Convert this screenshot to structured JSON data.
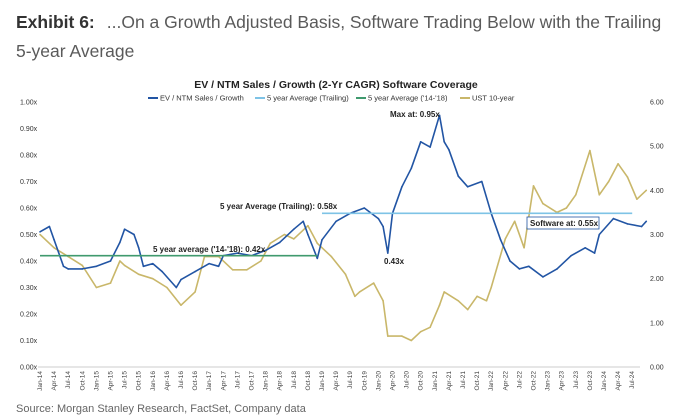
{
  "header": {
    "exhibit": "Exhibit 6:",
    "title": "...On a Growth Adjusted Basis, Software Trading Below with the Trailing 5-year Average"
  },
  "source": "Source: Morgan Stanley Research, FactSet, Company data",
  "chart_data": {
    "type": "line",
    "title": "EV / NTM Sales / Growth (2-Yr CAGR) Software Coverage",
    "legend": [
      "EV / NTM Sales / Growth",
      "5 year Average (Trailing)",
      "5 year Average ('14-'18)",
      "UST 10-year"
    ],
    "legend_placement": "top",
    "colors": {
      "ev": "#2255a4",
      "trailing": "#7ec3e6",
      "avg1418": "#3f9a6e",
      "ust": "#c9b76a"
    },
    "y_left": {
      "ticks": [
        "0.00x",
        "0.10x",
        "0.20x",
        "0.30x",
        "0.40x",
        "0.50x",
        "0.60x",
        "0.70x",
        "0.80x",
        "0.90x",
        "1.00x"
      ],
      "ylim": [
        0,
        1
      ]
    },
    "y_right": {
      "ticks": [
        "0.00",
        "1.00",
        "2.00",
        "3.00",
        "4.00",
        "5.00",
        "6.00"
      ],
      "ylim": [
        0,
        6
      ]
    },
    "x_ticks": [
      "Jan-14",
      "Apr-14",
      "Jul-14",
      "Oct-14",
      "Jan-15",
      "Apr-15",
      "Jul-15",
      "Oct-15",
      "Jan-16",
      "Apr-16",
      "Jul-16",
      "Oct-16",
      "Jan-17",
      "Apr-17",
      "Jul-17",
      "Oct-17",
      "Jan-18",
      "Apr-18",
      "Jul-18",
      "Oct-18",
      "Jan-19",
      "Apr-19",
      "Jul-19",
      "Oct-19",
      "Jan-20",
      "Apr-20",
      "Jul-20",
      "Oct-20",
      "Jan-21",
      "Apr-21",
      "Jul-21",
      "Oct-21",
      "Jan-22",
      "Apr-22",
      "Jul-22",
      "Oct-22",
      "Jan-23",
      "Apr-23",
      "Jul-23",
      "Oct-23",
      "Jan-24",
      "Apr-24",
      "Jul-24"
    ],
    "ev_series": {
      "month_index": [
        0,
        2,
        3,
        5,
        6,
        9,
        12,
        15,
        17,
        18,
        20,
        21,
        22,
        24,
        26,
        29,
        30,
        33,
        36,
        38,
        39,
        42,
        45,
        48,
        51,
        54,
        56,
        57,
        59,
        60,
        63,
        66,
        69,
        72,
        73,
        74,
        75,
        77,
        79,
        81,
        83,
        85,
        86,
        87,
        89,
        91,
        94,
        96,
        98,
        100,
        102,
        104,
        107,
        110,
        113,
        116,
        118,
        119,
        122,
        125,
        128,
        129
      ],
      "values": [
        0.51,
        0.53,
        0.48,
        0.38,
        0.37,
        0.37,
        0.38,
        0.4,
        0.47,
        0.52,
        0.5,
        0.45,
        0.38,
        0.39,
        0.36,
        0.3,
        0.33,
        0.36,
        0.39,
        0.38,
        0.42,
        0.43,
        0.42,
        0.44,
        0.47,
        0.52,
        0.55,
        0.5,
        0.41,
        0.48,
        0.55,
        0.58,
        0.6,
        0.56,
        0.53,
        0.43,
        0.58,
        0.68,
        0.75,
        0.85,
        0.83,
        0.95,
        0.85,
        0.82,
        0.72,
        0.68,
        0.7,
        0.58,
        0.48,
        0.4,
        0.37,
        0.38,
        0.34,
        0.37,
        0.42,
        0.45,
        0.43,
        0.5,
        0.56,
        0.54,
        0.53,
        0.55
      ]
    },
    "ust_series": {
      "month_index": [
        0,
        3,
        6,
        9,
        12,
        15,
        17,
        18,
        21,
        24,
        27,
        30,
        33,
        35,
        38,
        41,
        44,
        47,
        49,
        52,
        54,
        57,
        59,
        62,
        65,
        67,
        68,
        71,
        73,
        74,
        77,
        79,
        81,
        83,
        85,
        86,
        89,
        91,
        93,
        95,
        96,
        99,
        101,
        103,
        105,
        107,
        110,
        112,
        114,
        117,
        119,
        121,
        123,
        125,
        127,
        129
      ],
      "values": [
        3.0,
        2.7,
        2.5,
        2.3,
        1.8,
        1.9,
        2.4,
        2.3,
        2.1,
        2.0,
        1.8,
        1.4,
        1.7,
        2.5,
        2.5,
        2.2,
        2.2,
        2.4,
        2.8,
        3.0,
        2.9,
        3.2,
        2.8,
        2.5,
        2.1,
        1.6,
        1.7,
        1.9,
        1.5,
        0.7,
        0.7,
        0.6,
        0.8,
        0.9,
        1.4,
        1.7,
        1.5,
        1.3,
        1.6,
        1.5,
        1.8,
        2.9,
        3.3,
        2.7,
        4.1,
        3.7,
        3.5,
        3.6,
        3.9,
        4.9,
        3.9,
        4.2,
        4.6,
        4.3,
        3.8,
        4.0
      ]
    },
    "avg_1418": {
      "value": 0.42,
      "from": "Jan-14",
      "to": "Dec-18"
    },
    "avg_trailing": {
      "value": 0.58,
      "from": "Jan-19",
      "to": "Oct-24"
    },
    "annotations": {
      "max": "Max at: 0.95x",
      "trailing": "5 year Average (Trailing): 0.58x",
      "avg1418": "5 year average ('14-'18): 0.42x",
      "low": "0.43x",
      "current": "Software at: 0.55x"
    }
  }
}
